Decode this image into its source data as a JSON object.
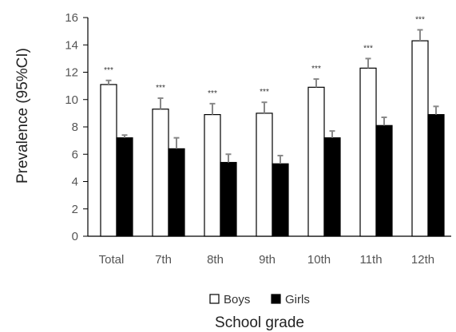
{
  "chart_data": {
    "type": "bar",
    "categories": [
      "Total",
      "7th",
      "8th",
      "9th",
      "10th",
      "11th",
      "12th"
    ],
    "series": [
      {
        "name": "Boys",
        "values": [
          11.1,
          9.3,
          8.9,
          9.0,
          10.9,
          12.3,
          14.3
        ],
        "ci_upper": [
          11.4,
          10.1,
          9.7,
          9.8,
          11.5,
          13.0,
          15.1
        ],
        "color": "#ffffff",
        "stroke": "#000000"
      },
      {
        "name": "Girls",
        "values": [
          7.2,
          6.4,
          5.4,
          5.3,
          7.2,
          8.1,
          8.9
        ],
        "ci_upper": [
          7.4,
          7.2,
          6.0,
          5.9,
          7.7,
          8.7,
          9.5
        ],
        "color": "#000000",
        "stroke": "#000000"
      }
    ],
    "significance": [
      "***",
      "***",
      "***",
      "***",
      "***",
      "***",
      "***"
    ],
    "xlabel": "School grade",
    "ylabel": "Prevalence (95%CI)",
    "ylim": [
      0,
      16
    ],
    "yticks": [
      0,
      2,
      4,
      6,
      8,
      10,
      12,
      14,
      16
    ],
    "grid": false,
    "legend_position": "bottom",
    "errorbar_color": "#888888"
  }
}
